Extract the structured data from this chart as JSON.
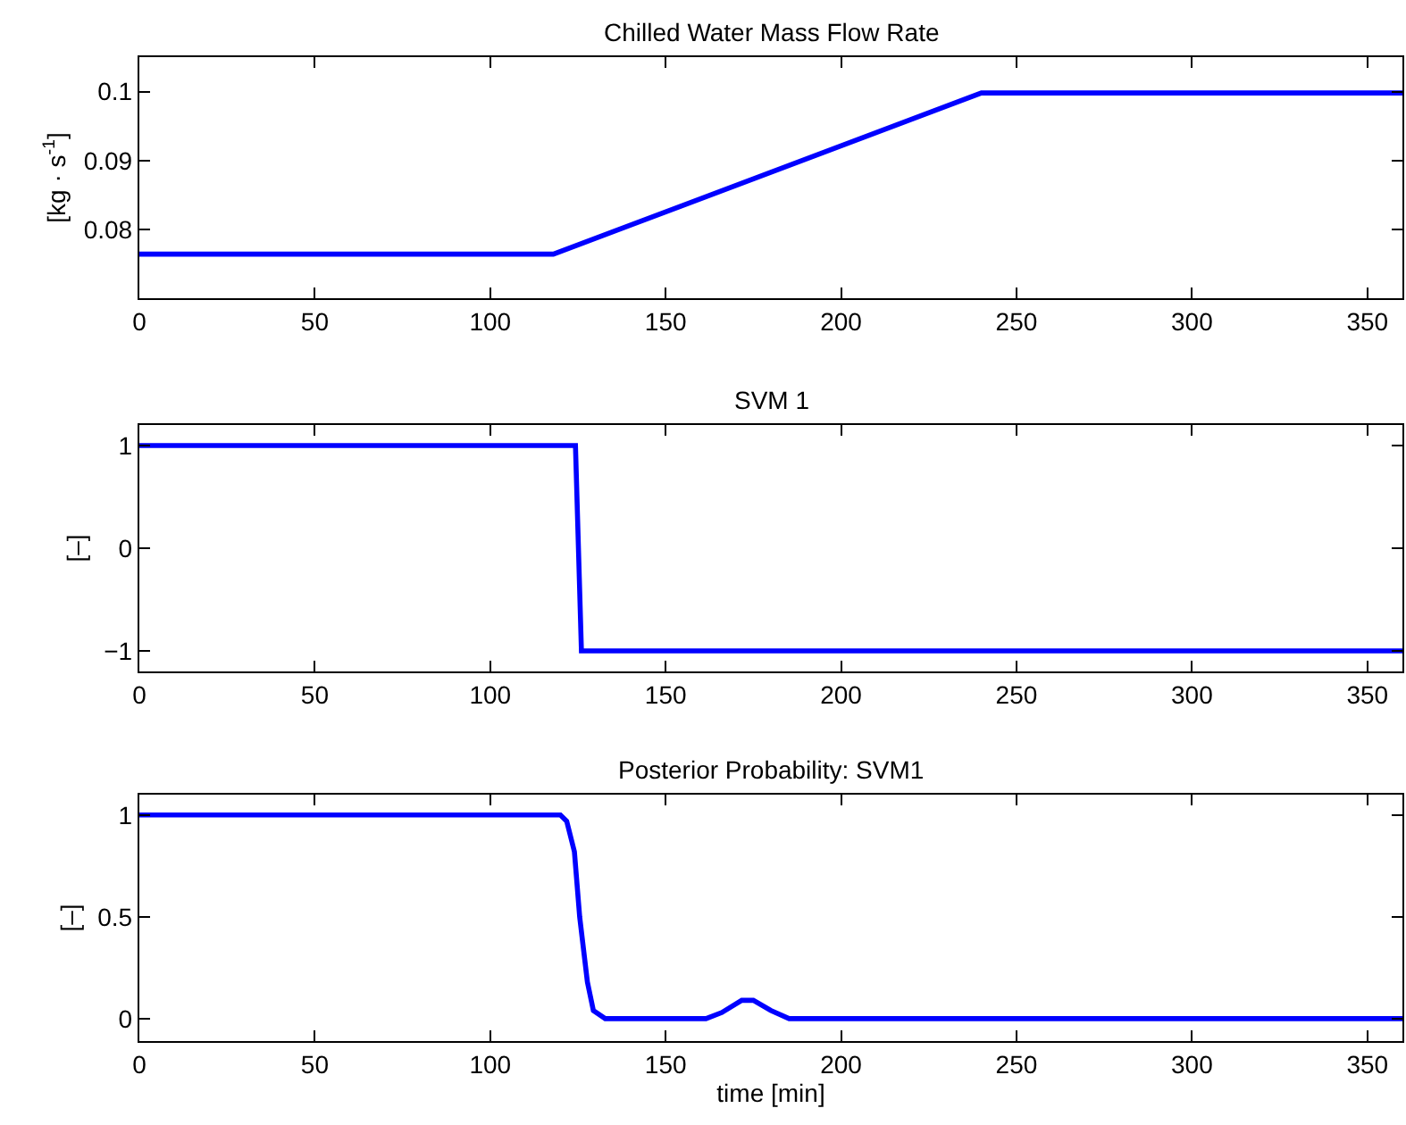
{
  "chart_data": [
    {
      "type": "line",
      "title": "Chilled Water Mass Flow Rate",
      "ylabel": "[kg · s$^{-1}$]",
      "series": [
        {
          "color": "#0000ff",
          "x": [
            0,
            118,
            240,
            360
          ],
          "values": [
            0.0764,
            0.0764,
            0.0998,
            0.0998
          ]
        }
      ],
      "xlim": [
        0,
        360
      ],
      "xticks": [
        0,
        50,
        100,
        150,
        200,
        250,
        300,
        350
      ],
      "ylim": [
        0.07,
        0.105
      ],
      "yticks": [
        0.08,
        0.09,
        0.1
      ],
      "marker": "none",
      "line_style": "solid"
    },
    {
      "type": "line",
      "title": "SVM 1",
      "ylabel": "[–]",
      "series": [
        {
          "color": "#0000ff",
          "x": [
            0,
            124.3,
            126,
            360
          ],
          "values": [
            1,
            1,
            -1,
            -1
          ]
        }
      ],
      "xlim": [
        0,
        360
      ],
      "xticks": [
        0,
        50,
        100,
        150,
        200,
        250,
        300,
        350
      ],
      "ylim": [
        -1.2,
        1.2
      ],
      "yticks": [
        {
          "value": -1,
          "label": "−1"
        },
        0,
        1
      ],
      "marker": "none",
      "line_style": "solid"
    },
    {
      "type": "line",
      "title": "Posterior Probability: SVM1",
      "xlabel": "time [min]",
      "ylabel": "[–]",
      "series": [
        {
          "color": "#0000ff",
          "x": [
            0,
            120,
            121.8,
            124,
            125.5,
            127.7,
            129.4,
            132.8,
            161.5,
            166,
            171.7,
            175,
            180,
            185.2,
            360
          ],
          "values": [
            1,
            1,
            0.97,
            0.82,
            0.5,
            0.18,
            0.04,
            0,
            0,
            0.03,
            0.09,
            0.09,
            0.04,
            0,
            0
          ]
        }
      ],
      "xlim": [
        0,
        360
      ],
      "xticks": [
        0,
        50,
        100,
        150,
        200,
        250,
        300,
        350
      ],
      "ylim": [
        -0.11,
        1.1
      ],
      "yticks": [
        0,
        0.5,
        1
      ],
      "marker": "none",
      "line_style": "solid"
    }
  ]
}
